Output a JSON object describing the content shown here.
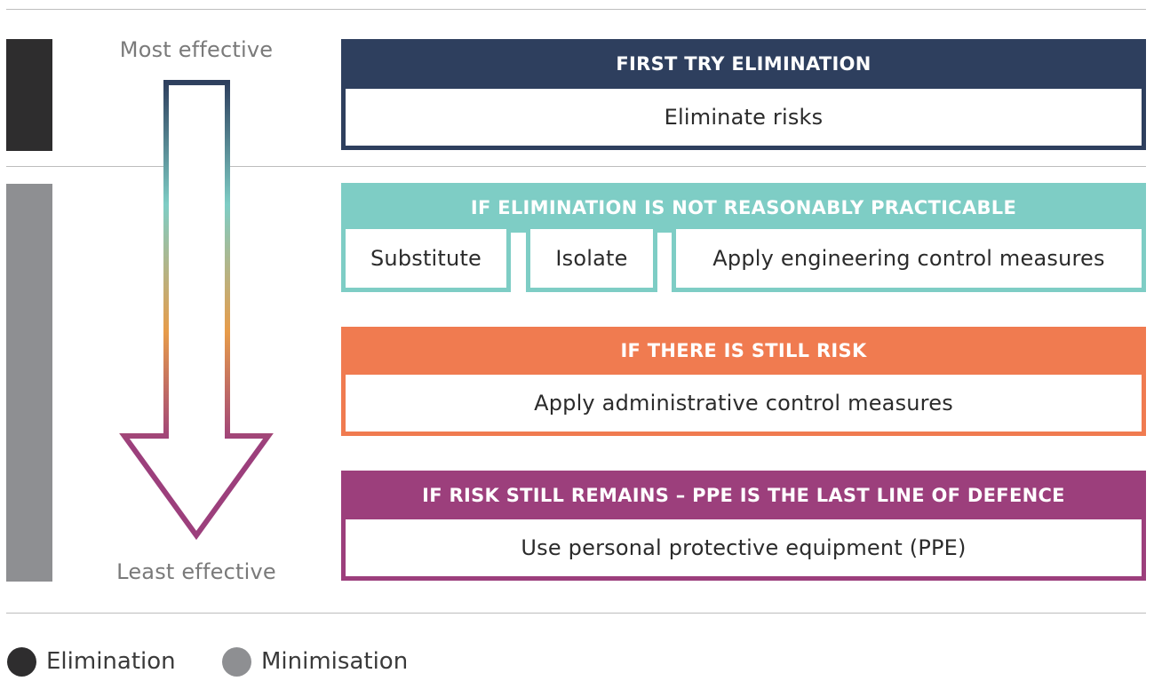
{
  "colors": {
    "elimination": "#2e2d2e",
    "minimisation": "#8e8f92",
    "navy": "#2e3f5e",
    "teal": "#7ecdc5",
    "orange": "#f07b50",
    "purple": "#9c3f7c",
    "amber": "#e79c4a"
  },
  "scale": {
    "top_label": "Most effective",
    "bottom_label": "Least effective"
  },
  "panels": {
    "elimination": {
      "heading": "FIRST TRY ELIMINATION",
      "items": [
        "Eliminate risks"
      ]
    },
    "substitution": {
      "heading": "IF ELIMINATION IS NOT REASONABLY PRACTICABLE",
      "items": [
        "Substitute",
        "Isolate",
        "Apply engineering control measures"
      ]
    },
    "administrative": {
      "heading": "IF THERE IS STILL RISK",
      "items": [
        "Apply administrative control measures"
      ]
    },
    "ppe": {
      "heading": "IF RISK STILL REMAINS – PPE IS THE LAST LINE OF DEFENCE",
      "items": [
        "Use personal protective equipment (PPE)"
      ]
    }
  },
  "legend": [
    {
      "label": "Elimination"
    },
    {
      "label": "Minimisation"
    }
  ]
}
